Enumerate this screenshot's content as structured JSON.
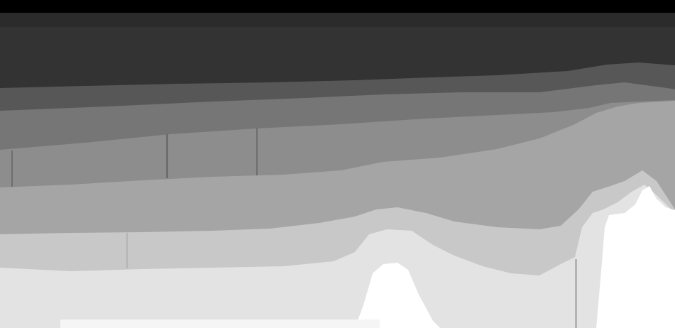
{
  "colors": {
    "background": "#000000",
    "band_dark": "#333333",
    "band_mid_dark": "#555555",
    "band_mid": "#767676",
    "band_mid_light": "#8d8d8d",
    "band_light": "#a5a5a5",
    "band_lighter": "#c8c8c8",
    "band_lightest": "#e3e3e3",
    "band_white": "#ffffff"
  }
}
